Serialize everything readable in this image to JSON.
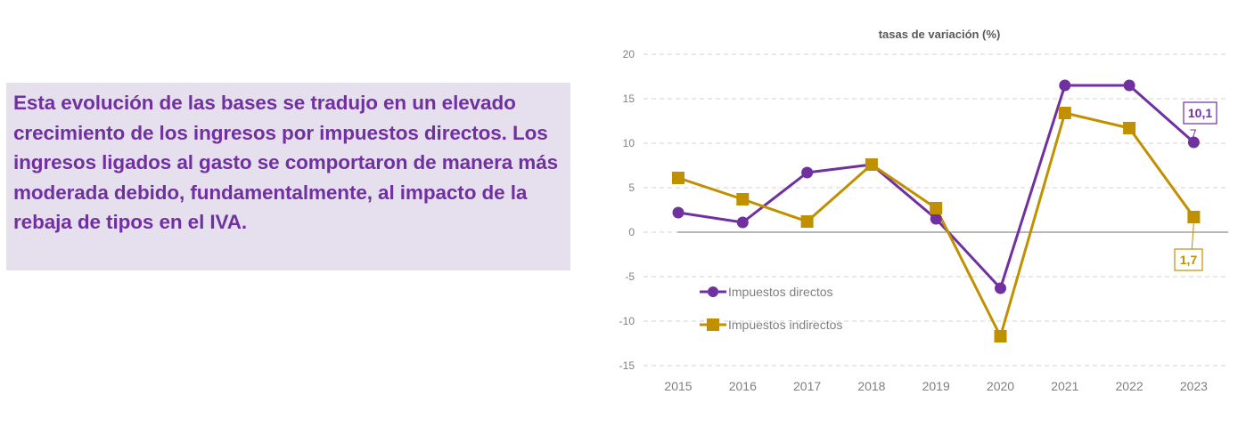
{
  "text_panel": {
    "paragraph": "Esta evolución de las bases se tradujo en un elevado crecimiento de los ingresos por impuestos directos. Los ingresos ligados al gasto se comportaron de manera más moderada debido, fundamentalmente, al impacto de la rebaja de tipos en el IVA."
  },
  "colors": {
    "directos": "#7030a0",
    "indirectos": "#c09000",
    "text_panel_bg": "#e6e0ee",
    "grid": "#d0d0d0",
    "axis_text": "#7f7f7f"
  },
  "chart_data": {
    "type": "line",
    "title": "tasas de variación (%)",
    "xlabel": "",
    "ylabel": "",
    "categories": [
      "2015",
      "2016",
      "2017",
      "2018",
      "2019",
      "2020",
      "2021",
      "2022",
      "2023"
    ],
    "ylim": [
      -15,
      20
    ],
    "yticks": [
      20,
      15,
      10,
      5,
      0,
      -5,
      -10,
      -15
    ],
    "grid": true,
    "legend_position": "bottom-left inside",
    "series": [
      {
        "name": "Impuestos directos",
        "marker": "circle",
        "values": [
          2.2,
          1.1,
          6.7,
          7.6,
          1.5,
          -6.3,
          16.5,
          16.5,
          10.1
        ]
      },
      {
        "name": "Impuestos indirectos",
        "marker": "square",
        "values": [
          6.1,
          3.7,
          1.2,
          7.6,
          2.7,
          -11.7,
          13.4,
          11.7,
          1.7
        ]
      }
    ],
    "annotations": [
      {
        "series": "Impuestos directos",
        "category": "2023",
        "label": "10,1"
      },
      {
        "series": "Impuestos indirectos",
        "category": "2023",
        "label": "1,7"
      }
    ]
  }
}
